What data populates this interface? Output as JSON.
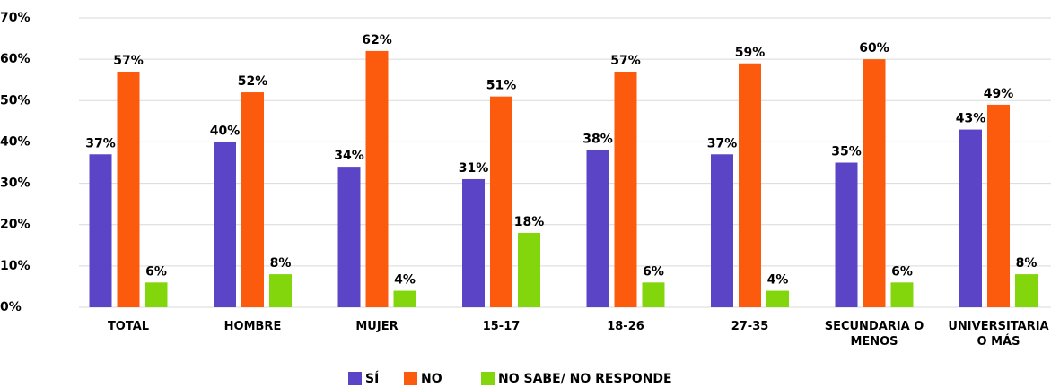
{
  "chart_data": {
    "type": "bar",
    "categories": [
      "TOTAL",
      "HOMBRE",
      "MUJER",
      "15-17",
      "18-26",
      "27-35",
      "SECUNDARIA O MENOS",
      "UNIVERSITARIA O MÁS"
    ],
    "series": [
      {
        "name": "SÍ",
        "color": "#5b45c6",
        "values": [
          37,
          40,
          34,
          31,
          38,
          37,
          35,
          43
        ],
        "value_labels": [
          "37%",
          "40%",
          "34%",
          "31%",
          "38%",
          "37%",
          "35%",
          "43%"
        ]
      },
      {
        "name": "NO",
        "color": "#fc5a0c",
        "values": [
          57,
          52,
          62,
          51,
          57,
          59,
          60,
          49
        ],
        "value_labels": [
          "57%",
          "52%",
          "62%",
          "51%",
          "57%",
          "59%",
          "60%",
          "49%"
        ]
      },
      {
        "name": "NO SABE/ NO RESPONDE",
        "color": "#84d60c",
        "values": [
          6,
          8,
          4,
          18,
          6,
          4,
          6,
          8
        ],
        "value_labels": [
          "6%",
          "8%",
          "4%",
          "18%",
          "6%",
          "4%",
          "6%",
          "8%"
        ]
      }
    ],
    "ylim": [
      0,
      70
    ],
    "yticks": [
      {
        "value": 0,
        "label": "0%"
      },
      {
        "value": 10,
        "label": "10%"
      },
      {
        "value": 20,
        "label": "20%"
      },
      {
        "value": 30,
        "label": "30%"
      },
      {
        "value": 40,
        "label": "40%"
      },
      {
        "value": 50,
        "label": "50%"
      },
      {
        "value": 60,
        "label": "60%"
      },
      {
        "value": 70,
        "label": "70%"
      }
    ],
    "grid": true,
    "legend": "bottom"
  }
}
